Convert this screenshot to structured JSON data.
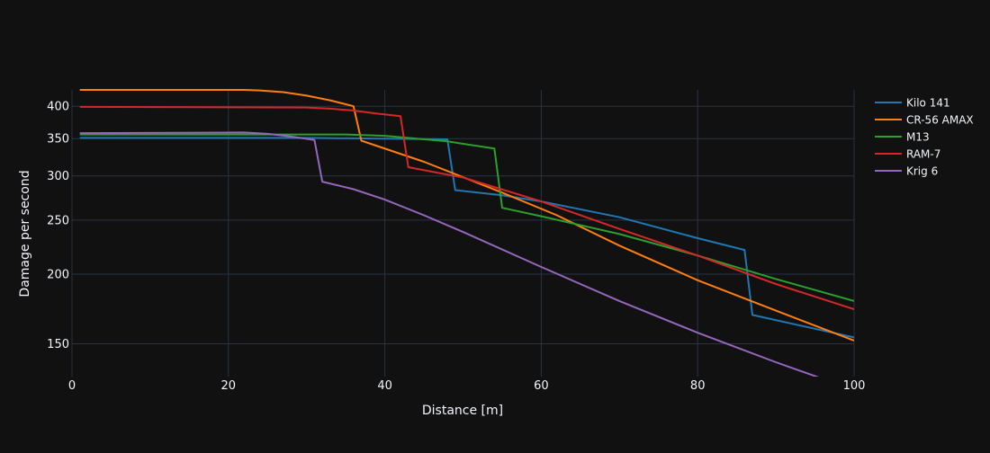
{
  "colors": {
    "background": "#111111",
    "grid": "#283442",
    "axis_text": "#f2f5fa"
  },
  "chart_data": {
    "type": "line",
    "title": "",
    "xlabel": "Distance [m]",
    "ylabel": "Damage per second",
    "x_scale": "linear",
    "y_scale": "log",
    "xlim": [
      0,
      100
    ],
    "ylim": [
      131,
      428
    ],
    "x_ticks": [
      0,
      20,
      40,
      60,
      80,
      100
    ],
    "x_tick_labels": [
      "0",
      "20",
      "40",
      "60",
      "80",
      "100"
    ],
    "y_ticks": [
      150,
      200,
      250,
      300,
      350,
      400
    ],
    "y_tick_labels": [
      "150",
      "200",
      "250",
      "300",
      "350",
      "400"
    ],
    "grid": true,
    "legend_position": "right",
    "series": [
      {
        "name": "Kilo 141",
        "color": "#1f77b4",
        "points": [
          [
            1,
            351
          ],
          [
            30,
            351
          ],
          [
            48,
            349
          ],
          [
            49,
            283
          ],
          [
            55,
            277
          ],
          [
            60,
            270
          ],
          [
            70,
            253
          ],
          [
            80,
            232
          ],
          [
            86,
            221
          ],
          [
            87,
            169
          ],
          [
            100,
            154
          ]
        ]
      },
      {
        "name": "CR-56 AMAX",
        "color": "#ff7f0e",
        "points": [
          [
            1,
            428
          ],
          [
            22,
            428
          ],
          [
            24,
            427
          ],
          [
            27,
            424
          ],
          [
            30,
            418
          ],
          [
            33,
            410
          ],
          [
            36,
            400
          ],
          [
            37,
            347
          ],
          [
            45,
            318
          ],
          [
            55,
            280
          ],
          [
            62,
            255
          ],
          [
            70,
            225
          ],
          [
            80,
            195
          ],
          [
            90,
            172
          ],
          [
            100,
            152
          ]
        ]
      },
      {
        "name": "M13",
        "color": "#2ca02c",
        "points": [
          [
            1,
            356
          ],
          [
            35,
            356
          ],
          [
            40,
            354
          ],
          [
            48,
            346
          ],
          [
            54,
            336
          ],
          [
            55,
            263
          ],
          [
            60,
            254
          ],
          [
            70,
            236
          ],
          [
            80,
            216
          ],
          [
            90,
            196
          ],
          [
            100,
            179
          ]
        ]
      },
      {
        "name": "RAM-7",
        "color": "#d62728",
        "points": [
          [
            1,
            399
          ],
          [
            30,
            398
          ],
          [
            33,
            396
          ],
          [
            36,
            393
          ],
          [
            39,
            388
          ],
          [
            42,
            384
          ],
          [
            43,
            311
          ],
          [
            50,
            298
          ],
          [
            60,
            270
          ],
          [
            70,
            241
          ],
          [
            80,
            216
          ],
          [
            90,
            192
          ],
          [
            100,
            173
          ]
        ]
      },
      {
        "name": "Krig 6",
        "color": "#9467bd",
        "points": [
          [
            1,
            358
          ],
          [
            22,
            359
          ],
          [
            25,
            357
          ],
          [
            28,
            353
          ],
          [
            31,
            348
          ],
          [
            32,
            293
          ],
          [
            36,
            284
          ],
          [
            40,
            272
          ],
          [
            45,
            255
          ],
          [
            50,
            238
          ],
          [
            60,
            206
          ],
          [
            70,
            179
          ],
          [
            80,
            157
          ],
          [
            90,
            139
          ],
          [
            100,
            124
          ]
        ]
      }
    ]
  }
}
